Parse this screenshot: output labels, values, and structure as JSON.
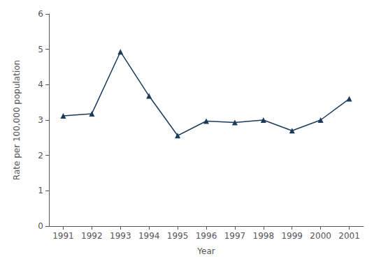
{
  "chart_data": {
    "type": "line",
    "x": [
      1991,
      1992,
      1993,
      1994,
      1995,
      1996,
      1997,
      1998,
      1999,
      2000,
      2001
    ],
    "values": [
      3.12,
      3.18,
      4.93,
      3.68,
      2.56,
      2.97,
      2.93,
      3.0,
      2.7,
      3.0,
      3.6
    ],
    "color": "#1a3a5c",
    "marker": "triangle",
    "xlabel": "Year",
    "ylabel": "Rate per 100,000 population",
    "xlim": [
      1990.5,
      2001.5
    ],
    "xticks": [
      1991,
      1992,
      1993,
      1994,
      1995,
      1996,
      1997,
      1998,
      1999,
      2000,
      2001
    ],
    "ylim": [
      0,
      6
    ],
    "yticks": [
      0,
      1,
      2,
      3,
      4,
      5,
      6
    ],
    "grid": false
  }
}
